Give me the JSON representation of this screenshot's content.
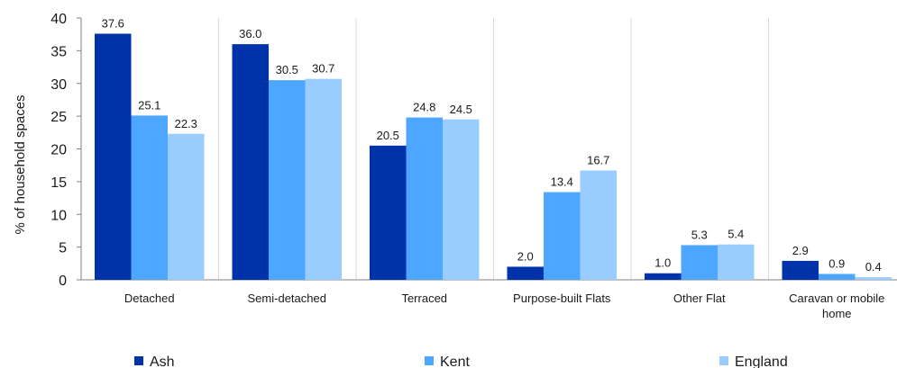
{
  "chart_data": {
    "type": "bar",
    "categories": [
      "Detached",
      "Semi-detached",
      "Terraced",
      "Purpose-built Flats",
      "Other Flat",
      "Caravan or mobile home"
    ],
    "category_lines": [
      [
        "Detached"
      ],
      [
        "Semi-detached"
      ],
      [
        "Terraced"
      ],
      [
        "Purpose-built Flats"
      ],
      [
        "Other Flat"
      ],
      [
        "Caravan or mobile",
        "home"
      ]
    ],
    "series": [
      {
        "name": "Ash",
        "color": "#0033aa",
        "values": [
          37.6,
          36.0,
          20.5,
          2.0,
          1.0,
          2.9
        ],
        "labels": [
          "37.6",
          "36.0",
          "20.5",
          "2.0",
          "1.0",
          "2.9"
        ]
      },
      {
        "name": "Kent",
        "color": "#4da6ff",
        "values": [
          25.1,
          30.5,
          24.8,
          13.4,
          5.3,
          0.9
        ],
        "labels": [
          "25.1",
          "30.5",
          "24.8",
          "13.4",
          "5.3",
          "0.9"
        ]
      },
      {
        "name": "England",
        "color": "#99ccff",
        "values": [
          22.3,
          30.7,
          24.5,
          16.7,
          5.4,
          0.4
        ],
        "labels": [
          "22.3",
          "30.7",
          "24.5",
          "16.7",
          "5.4",
          "0.4"
        ]
      }
    ],
    "title": "",
    "xlabel": "",
    "ylabel": "% of household spaces",
    "ylim": [
      0,
      40
    ],
    "yticks": [
      "0",
      "5",
      "10",
      "15",
      "20",
      "25",
      "30",
      "35",
      "40"
    ],
    "grid": "vertical separators between categories",
    "legend": "bottom"
  }
}
